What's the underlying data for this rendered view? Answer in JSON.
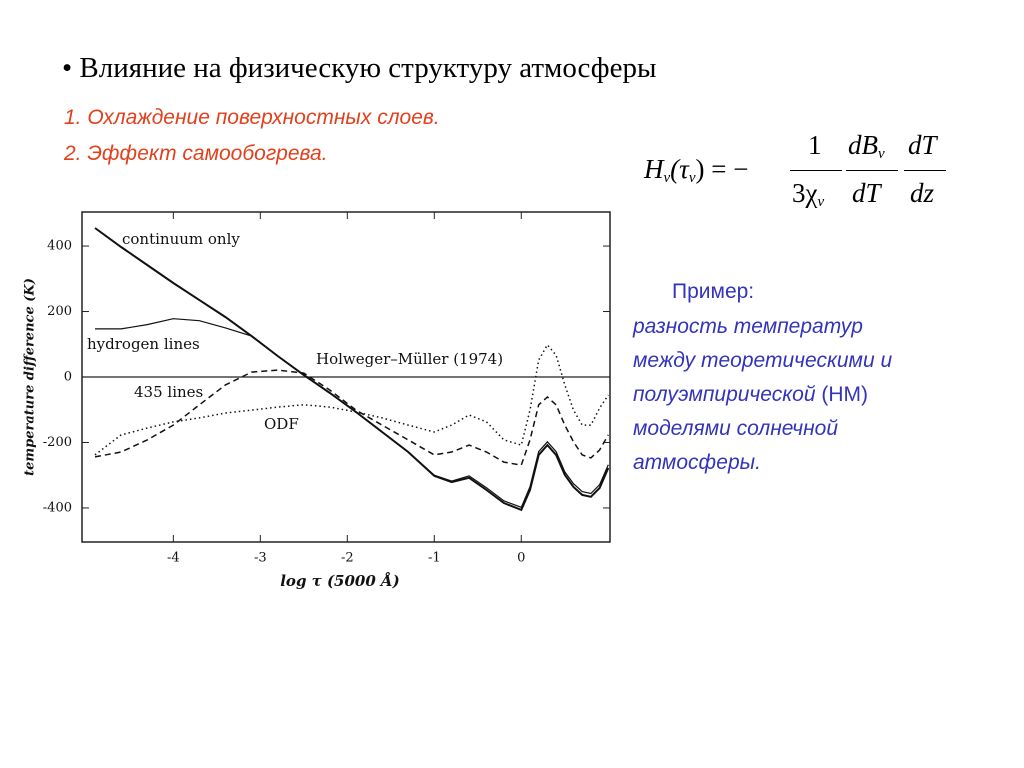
{
  "slide": {
    "bullet": "Влияние на физическую структуру атмосферы",
    "points": [
      "1. Охлаждение поверхностных слоев.",
      "2. Эффект самообогрева."
    ],
    "formula": {
      "lhs": "H",
      "lhs_sub": "ν",
      "arg": "(τ",
      "arg_sub": "ν",
      "eq": ") = −",
      "num1": "1",
      "den1": "3χ",
      "den1_sub": "ν",
      "num2": "dB",
      "num2_sub": "ν",
      "den2": "dT",
      "num3": "dT",
      "den3": "dz"
    },
    "example_title": "Пример:",
    "example_lines": [
      "разность температур",
      "между теоретическими и",
      "полуэмпирической",
      "(НМ)",
      "моделями солнечной",
      "атмосферы."
    ]
  },
  "chart_data": {
    "type": "line",
    "x_label": "log τ (5000 Å)",
    "y_label": "temperature difference (K)",
    "x": [
      -4.9,
      -4.6,
      -4.3,
      -4.0,
      -3.7,
      -3.4,
      -3.1,
      -2.8,
      -2.5,
      -2.2,
      -1.9,
      -1.6,
      -1.3,
      -1.0,
      -0.8,
      -0.6,
      -0.4,
      -0.2,
      0,
      0.1,
      0.2,
      0.3,
      0.4,
      0.5,
      0.6,
      0.7,
      0.8,
      0.9,
      1.0
    ],
    "series": [
      {
        "name": "continuum only",
        "color": "#111",
        "dash": "solid",
        "values": [
          455,
          397,
          342,
          287,
          235,
          183,
          125,
          64,
          6,
          -49,
          -107,
          -168,
          -229,
          -302,
          -321,
          -308,
          -345,
          -385,
          -406,
          -345,
          -238,
          -208,
          -238,
          -299,
          -336,
          -360,
          -366,
          -339,
          -278
        ]
      },
      {
        "name": "hydrogen lines",
        "color": "#111",
        "dash": "thin",
        "values": [
          147,
          147,
          160,
          178,
          172,
          150,
          125,
          64,
          6,
          -49,
          -107,
          -168,
          -229,
          -300,
          -318,
          -302,
          -338,
          -378,
          -398,
          -335,
          -228,
          -198,
          -228,
          -290,
          -326,
          -350,
          -356,
          -329,
          -268
        ]
      },
      {
        "name": "435 lines",
        "color": "#111",
        "dash": "dashed",
        "values": [
          -244,
          -229,
          -192,
          -147,
          -85,
          -24,
          15,
          21,
          12,
          -40,
          -101,
          -147,
          -192,
          -238,
          -229,
          -208,
          -229,
          -260,
          -269,
          -192,
          -85,
          -61,
          -85,
          -147,
          -198,
          -238,
          -247,
          -223,
          -177
        ]
      },
      {
        "name": "ODF",
        "color": "#111",
        "dash": "dotted",
        "values": [
          -238,
          -177,
          -156,
          -137,
          -125,
          -110,
          -101,
          -92,
          -85,
          -92,
          -107,
          -125,
          -147,
          -168,
          -147,
          -116,
          -137,
          -192,
          -208,
          -101,
          52,
          98,
          67,
          -24,
          -101,
          -147,
          -147,
          -95,
          -55
        ]
      }
    ],
    "reference_line": {
      "value": 0,
      "label": "Holweger–Müller (1974)"
    },
    "xlim": [
      -5.05,
      1.02
    ],
    "ylim": [
      -504,
      504
    ],
    "xticks": [
      -4,
      -3,
      -2,
      -1,
      0
    ],
    "yticks": [
      400,
      200,
      0,
      -200,
      -400
    ]
  }
}
